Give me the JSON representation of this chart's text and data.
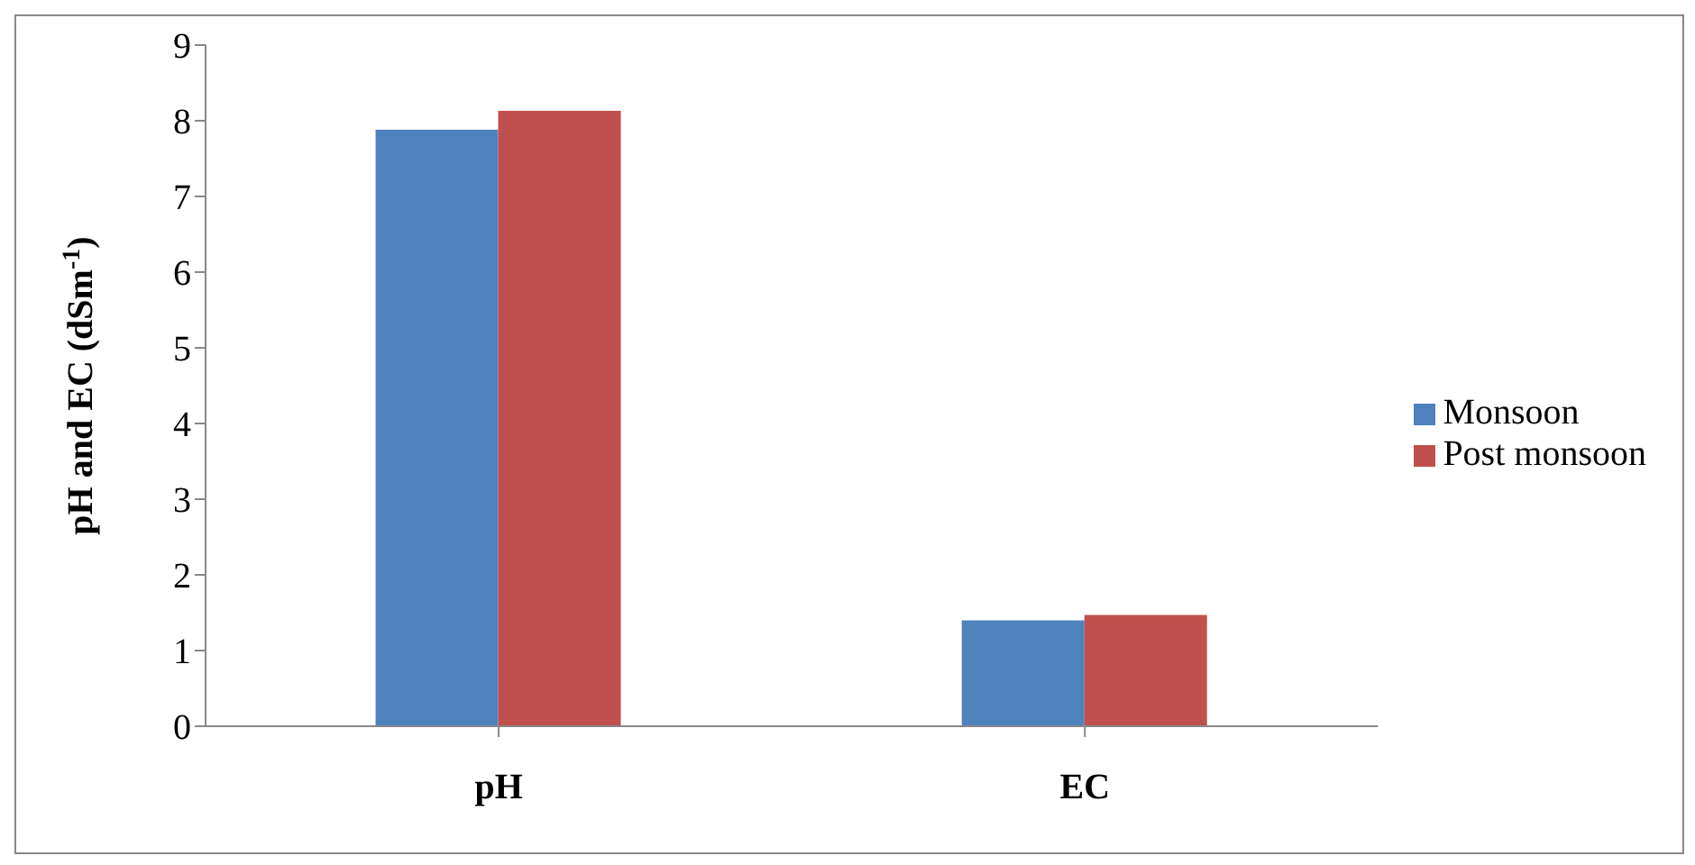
{
  "chart_data": {
    "type": "bar",
    "ylabel": "pH and EC (dSm$^{-1}$)",
    "categories": [
      "pH",
      "EC"
    ],
    "series": [
      {
        "name": "Monsoon",
        "color": "#4f81bd",
        "values": [
          7.88,
          1.4
        ]
      },
      {
        "name": "Post monsoon",
        "color": "#c0504d",
        "values": [
          8.13,
          1.47
        ]
      }
    ],
    "ylim": [
      0,
      9
    ],
    "yticks": [
      0,
      1,
      2,
      3,
      4,
      5,
      6,
      7,
      8,
      9
    ],
    "grid": false,
    "legend": "right"
  }
}
